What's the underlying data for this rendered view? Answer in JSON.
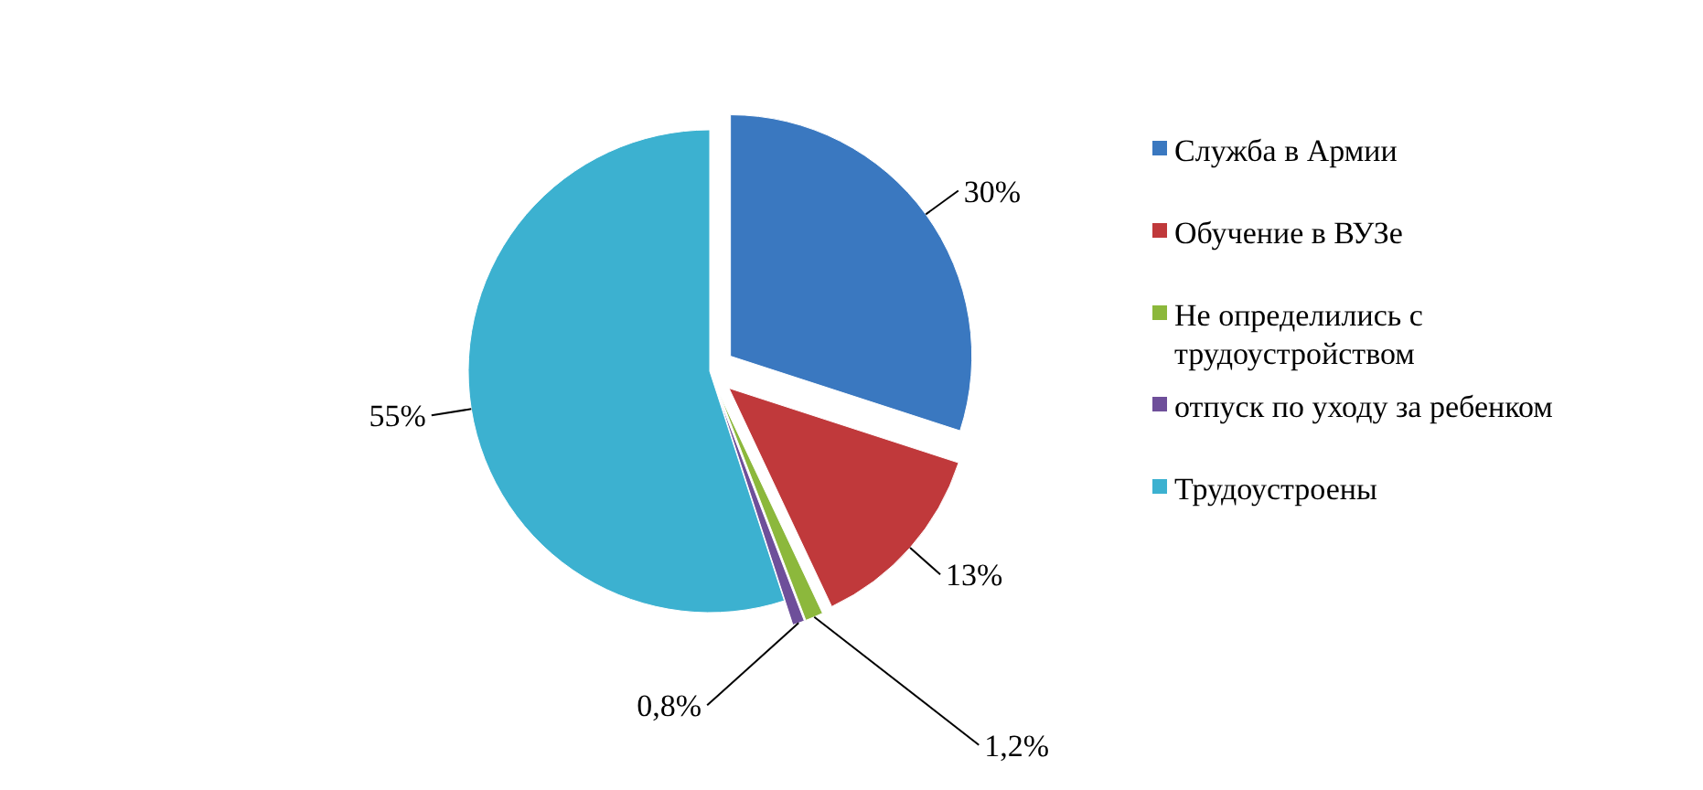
{
  "chart_data": {
    "type": "pie",
    "categories": [
      "Служба в Армии",
      "Обучение в ВУЗе",
      "Не определились с трудоустройством",
      "отпуск по уходу за ребенком",
      "Трудоустроены"
    ],
    "values": [
      30,
      13,
      1.2,
      0.8,
      55
    ],
    "value_labels": [
      "30%",
      "13%",
      "1,2%",
      "0,8%",
      "55%"
    ],
    "colors": [
      "#3a78c0",
      "#c0393b",
      "#8cb83c",
      "#6e4f9a",
      "#3cb1d0"
    ],
    "legend": "right"
  }
}
